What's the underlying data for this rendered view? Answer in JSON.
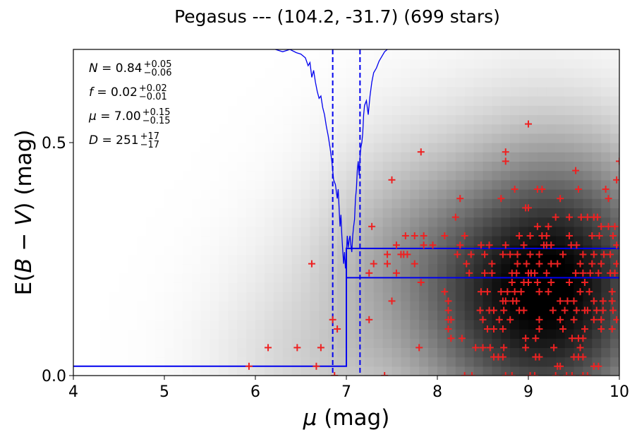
{
  "chart_data": {
    "type": "heatmap",
    "title": "Pegasus --- (104.2, -31.7) (699 stars)",
    "xlabel_symbol": "μ",
    "xlabel_unit": " (mag)",
    "ylabel_prefix": "E(",
    "ylabel_symbol": "B − V",
    "ylabel_suffix": ") (mag)",
    "xlim": [
      4,
      10
    ],
    "ylim": [
      0,
      0.7
    ],
    "xticks": [
      4,
      5,
      6,
      7,
      8,
      9,
      10
    ],
    "xtick_labels": [
      "4",
      "5",
      "6",
      "7",
      "8",
      "9",
      "10"
    ],
    "yticks": [
      0.0,
      0.5
    ],
    "ytick_labels": [
      "0.0",
      "0.5"
    ],
    "grid": false,
    "colormap": "greys",
    "colors": {
      "stars": "#ee2222",
      "model": "#0000ee",
      "frame": "#000000"
    },
    "annotations": [
      {
        "symbol": "N",
        "value": "0.84",
        "plus": "+0.05",
        "minus": "−0.06"
      },
      {
        "symbol": "f",
        "value": "0.02",
        "plus": "+0.02",
        "minus": "−0.01"
      },
      {
        "symbol": "μ",
        "value": "7.00",
        "plus": "+0.15",
        "minus": "−0.15"
      },
      {
        "symbol": "D",
        "value": "251",
        "plus": "+17",
        "minus": "−17"
      }
    ],
    "fit": {
      "foreground_E": 0.02,
      "cloud_mu": 7.0,
      "cloud_E_upper": 0.273,
      "cloud_E_lower": 0.21,
      "mu_lower": 6.85,
      "mu_upper": 7.15
    },
    "likelihood_curve": {
      "description": "noisy trace in data units (mu, E)",
      "points": [
        [
          6.22,
          0.7
        ],
        [
          6.3,
          0.695
        ],
        [
          6.38,
          0.7
        ],
        [
          6.45,
          0.693
        ],
        [
          6.5,
          0.69
        ],
        [
          6.55,
          0.682
        ],
        [
          6.58,
          0.665
        ],
        [
          6.6,
          0.672
        ],
        [
          6.62,
          0.64
        ],
        [
          6.64,
          0.655
        ],
        [
          6.66,
          0.63
        ],
        [
          6.68,
          0.61
        ],
        [
          6.7,
          0.595
        ],
        [
          6.72,
          0.6
        ],
        [
          6.74,
          0.575
        ],
        [
          6.76,
          0.56
        ],
        [
          6.78,
          0.535
        ],
        [
          6.8,
          0.515
        ],
        [
          6.82,
          0.49
        ],
        [
          6.84,
          0.46
        ],
        [
          6.86,
          0.42
        ],
        [
          6.88,
          0.41
        ],
        [
          6.9,
          0.38
        ],
        [
          6.91,
          0.4
        ],
        [
          6.92,
          0.36
        ],
        [
          6.93,
          0.32
        ],
        [
          6.94,
          0.345
        ],
        [
          6.95,
          0.3
        ],
        [
          6.96,
          0.27
        ],
        [
          6.97,
          0.24
        ],
        [
          6.98,
          0.265
        ],
        [
          6.99,
          0.23
        ],
        [
          7.0,
          0.26
        ],
        [
          7.01,
          0.3
        ],
        [
          7.02,
          0.275
        ],
        [
          7.03,
          0.29
        ],
        [
          7.04,
          0.3
        ],
        [
          7.05,
          0.28
        ],
        [
          7.06,
          0.265
        ],
        [
          7.07,
          0.3
        ],
        [
          7.08,
          0.32
        ],
        [
          7.09,
          0.335
        ],
        [
          7.1,
          0.38
        ],
        [
          7.11,
          0.4
        ],
        [
          7.12,
          0.44
        ],
        [
          7.13,
          0.46
        ],
        [
          7.14,
          0.43
        ],
        [
          7.15,
          0.47
        ],
        [
          7.16,
          0.49
        ],
        [
          7.17,
          0.5
        ],
        [
          7.18,
          0.52
        ],
        [
          7.19,
          0.56
        ],
        [
          7.2,
          0.58
        ],
        [
          7.22,
          0.59
        ],
        [
          7.24,
          0.56
        ],
        [
          7.26,
          0.6
        ],
        [
          7.28,
          0.63
        ],
        [
          7.3,
          0.65
        ],
        [
          7.33,
          0.66
        ],
        [
          7.36,
          0.675
        ],
        [
          7.39,
          0.685
        ],
        [
          7.42,
          0.695
        ],
        [
          7.45,
          0.7
        ]
      ]
    },
    "stars": [
      [
        9.0,
        0.54
      ],
      [
        7.82,
        0.48
      ],
      [
        8.75,
        0.48
      ],
      [
        8.75,
        0.46
      ],
      [
        10.0,
        0.46
      ],
      [
        9.52,
        0.44
      ],
      [
        7.5,
        0.42
      ],
      [
        9.97,
        0.42
      ],
      [
        8.85,
        0.4
      ],
      [
        9.1,
        0.4
      ],
      [
        9.15,
        0.4
      ],
      [
        9.55,
        0.4
      ],
      [
        9.85,
        0.4
      ],
      [
        8.25,
        0.38
      ],
      [
        8.7,
        0.38
      ],
      [
        9.35,
        0.38
      ],
      [
        9.88,
        0.38
      ],
      [
        8.97,
        0.36
      ],
      [
        9.0,
        0.36
      ],
      [
        8.2,
        0.34
      ],
      [
        9.3,
        0.34
      ],
      [
        9.45,
        0.34
      ],
      [
        9.58,
        0.34
      ],
      [
        9.65,
        0.34
      ],
      [
        9.72,
        0.34
      ],
      [
        9.76,
        0.34
      ],
      [
        7.28,
        0.32
      ],
      [
        9.1,
        0.32
      ],
      [
        9.22,
        0.32
      ],
      [
        9.8,
        0.32
      ],
      [
        9.88,
        0.32
      ],
      [
        9.95,
        0.32
      ],
      [
        7.65,
        0.3
      ],
      [
        7.75,
        0.3
      ],
      [
        7.85,
        0.3
      ],
      [
        8.08,
        0.3
      ],
      [
        8.3,
        0.3
      ],
      [
        8.9,
        0.3
      ],
      [
        9.02,
        0.3
      ],
      [
        9.15,
        0.3
      ],
      [
        9.2,
        0.3
      ],
      [
        9.45,
        0.3
      ],
      [
        9.7,
        0.3
      ],
      [
        9.78,
        0.3
      ],
      [
        9.93,
        0.3
      ],
      [
        7.55,
        0.28
      ],
      [
        7.85,
        0.28
      ],
      [
        7.95,
        0.28
      ],
      [
        8.25,
        0.28
      ],
      [
        8.48,
        0.28
      ],
      [
        8.57,
        0.28
      ],
      [
        8.75,
        0.28
      ],
      [
        8.95,
        0.28
      ],
      [
        9.17,
        0.28
      ],
      [
        9.2,
        0.28
      ],
      [
        9.25,
        0.28
      ],
      [
        9.47,
        0.28
      ],
      [
        9.53,
        0.28
      ],
      [
        9.97,
        0.28
      ],
      [
        7.45,
        0.26
      ],
      [
        7.6,
        0.26
      ],
      [
        7.63,
        0.26
      ],
      [
        7.67,
        0.26
      ],
      [
        8.22,
        0.26
      ],
      [
        8.37,
        0.26
      ],
      [
        8.52,
        0.26
      ],
      [
        8.72,
        0.26
      ],
      [
        8.8,
        0.26
      ],
      [
        8.88,
        0.26
      ],
      [
        9.02,
        0.26
      ],
      [
        9.12,
        0.26
      ],
      [
        9.38,
        0.26
      ],
      [
        9.6,
        0.26
      ],
      [
        9.72,
        0.26
      ],
      [
        9.83,
        0.26
      ],
      [
        9.9,
        0.26
      ],
      [
        6.62,
        0.24
      ],
      [
        7.3,
        0.24
      ],
      [
        7.45,
        0.24
      ],
      [
        7.75,
        0.24
      ],
      [
        8.32,
        0.24
      ],
      [
        8.6,
        0.24
      ],
      [
        8.88,
        0.24
      ],
      [
        8.98,
        0.24
      ],
      [
        9.12,
        0.24
      ],
      [
        9.25,
        0.24
      ],
      [
        9.32,
        0.24
      ],
      [
        9.57,
        0.24
      ],
      [
        9.7,
        0.24
      ],
      [
        9.8,
        0.24
      ],
      [
        9.97,
        0.24
      ],
      [
        7.25,
        0.22
      ],
      [
        7.55,
        0.22
      ],
      [
        8.35,
        0.22
      ],
      [
        8.52,
        0.22
      ],
      [
        8.6,
        0.22
      ],
      [
        8.82,
        0.22
      ],
      [
        8.87,
        0.22
      ],
      [
        9.0,
        0.22
      ],
      [
        9.03,
        0.22
      ],
      [
        9.07,
        0.22
      ],
      [
        9.2,
        0.22
      ],
      [
        9.52,
        0.22
      ],
      [
        9.6,
        0.22
      ],
      [
        9.68,
        0.22
      ],
      [
        9.77,
        0.22
      ],
      [
        9.9,
        0.22
      ],
      [
        9.95,
        0.22
      ],
      [
        7.82,
        0.2
      ],
      [
        8.82,
        0.2
      ],
      [
        8.95,
        0.2
      ],
      [
        9.0,
        0.2
      ],
      [
        9.1,
        0.2
      ],
      [
        9.25,
        0.2
      ],
      [
        9.45,
        0.2
      ],
      [
        9.62,
        0.2
      ],
      [
        8.08,
        0.18
      ],
      [
        8.48,
        0.18
      ],
      [
        8.55,
        0.18
      ],
      [
        8.7,
        0.18
      ],
      [
        8.77,
        0.18
      ],
      [
        8.85,
        0.18
      ],
      [
        8.92,
        0.18
      ],
      [
        9.12,
        0.18
      ],
      [
        9.22,
        0.18
      ],
      [
        9.57,
        0.18
      ],
      [
        9.67,
        0.18
      ],
      [
        9.92,
        0.18
      ],
      [
        7.5,
        0.16
      ],
      [
        8.12,
        0.16
      ],
      [
        8.72,
        0.16
      ],
      [
        8.75,
        0.16
      ],
      [
        8.83,
        0.16
      ],
      [
        8.87,
        0.16
      ],
      [
        9.35,
        0.16
      ],
      [
        9.43,
        0.16
      ],
      [
        9.5,
        0.16
      ],
      [
        9.72,
        0.16
      ],
      [
        9.82,
        0.16
      ],
      [
        9.92,
        0.16
      ],
      [
        8.12,
        0.14
      ],
      [
        8.47,
        0.14
      ],
      [
        8.57,
        0.14
      ],
      [
        8.62,
        0.14
      ],
      [
        8.73,
        0.14
      ],
      [
        8.9,
        0.14
      ],
      [
        8.95,
        0.14
      ],
      [
        9.27,
        0.14
      ],
      [
        9.4,
        0.14
      ],
      [
        9.53,
        0.14
      ],
      [
        9.62,
        0.14
      ],
      [
        9.65,
        0.14
      ],
      [
        9.75,
        0.14
      ],
      [
        9.82,
        0.14
      ],
      [
        9.93,
        0.14
      ],
      [
        6.85,
        0.12
      ],
      [
        7.25,
        0.12
      ],
      [
        8.12,
        0.12
      ],
      [
        8.15,
        0.12
      ],
      [
        8.5,
        0.12
      ],
      [
        8.68,
        0.12
      ],
      [
        8.8,
        0.12
      ],
      [
        9.12,
        0.12
      ],
      [
        9.35,
        0.12
      ],
      [
        9.5,
        0.12
      ],
      [
        9.72,
        0.12
      ],
      [
        9.8,
        0.12
      ],
      [
        9.97,
        0.12
      ],
      [
        6.9,
        0.1
      ],
      [
        8.12,
        0.1
      ],
      [
        8.55,
        0.1
      ],
      [
        8.62,
        0.1
      ],
      [
        8.72,
        0.1
      ],
      [
        9.12,
        0.1
      ],
      [
        9.38,
        0.1
      ],
      [
        9.62,
        0.1
      ],
      [
        9.8,
        0.1
      ],
      [
        9.92,
        0.1
      ],
      [
        8.15,
        0.08
      ],
      [
        8.27,
        0.08
      ],
      [
        8.97,
        0.08
      ],
      [
        9.08,
        0.08
      ],
      [
        9.48,
        0.08
      ],
      [
        9.55,
        0.08
      ],
      [
        9.6,
        0.08
      ],
      [
        6.14,
        0.06
      ],
      [
        6.46,
        0.06
      ],
      [
        6.72,
        0.06
      ],
      [
        7.8,
        0.06
      ],
      [
        8.42,
        0.06
      ],
      [
        8.5,
        0.06
      ],
      [
        8.58,
        0.06
      ],
      [
        8.73,
        0.06
      ],
      [
        8.97,
        0.06
      ],
      [
        9.28,
        0.06
      ],
      [
        9.57,
        0.06
      ],
      [
        8.62,
        0.04
      ],
      [
        8.67,
        0.04
      ],
      [
        8.72,
        0.04
      ],
      [
        9.08,
        0.04
      ],
      [
        9.12,
        0.04
      ],
      [
        9.5,
        0.04
      ],
      [
        9.55,
        0.04
      ],
      [
        9.6,
        0.04
      ],
      [
        5.93,
        0.02
      ],
      [
        6.67,
        0.02
      ],
      [
        9.32,
        0.02
      ],
      [
        9.35,
        0.02
      ],
      [
        9.72,
        0.02
      ],
      [
        9.77,
        0.02
      ],
      [
        6.87,
        0.0
      ],
      [
        7.42,
        0.0
      ],
      [
        8.3,
        0.0
      ],
      [
        8.38,
        0.0
      ],
      [
        8.75,
        0.0
      ],
      [
        8.82,
        0.0
      ],
      [
        9.02,
        0.0
      ],
      [
        9.07,
        0.0
      ],
      [
        9.3,
        0.0
      ],
      [
        9.42,
        0.0
      ],
      [
        9.48,
        0.0
      ],
      [
        9.6,
        0.0
      ],
      [
        9.65,
        0.0
      ]
    ]
  }
}
